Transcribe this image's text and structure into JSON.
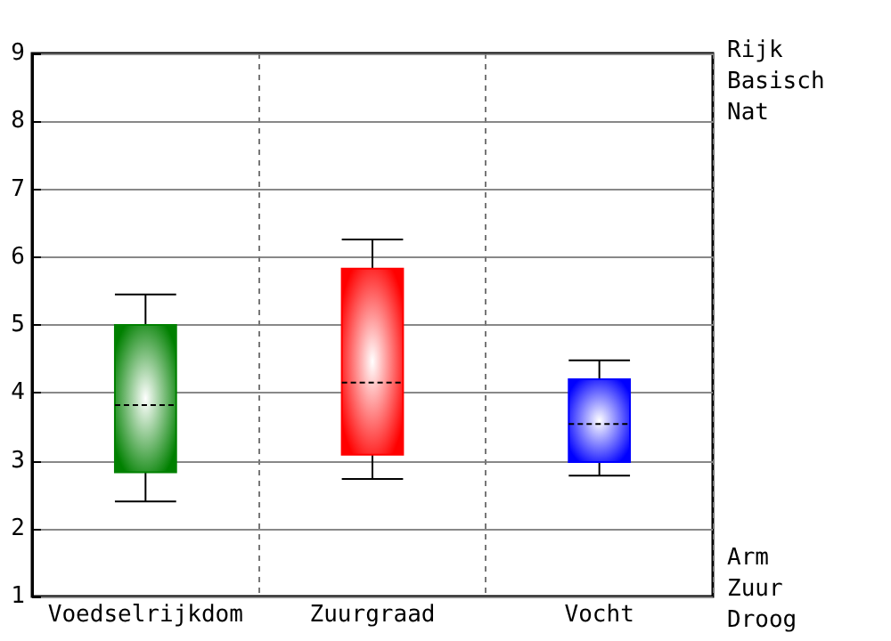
{
  "chart_data": {
    "type": "box",
    "categories": [
      "Voedselrijkdom",
      "Zuurgraad",
      "Vocht"
    ],
    "series": [
      {
        "color": "#008000",
        "boxes": [
          {
            "low": 2.4,
            "q1": 2.83,
            "median": 3.82,
            "q3": 5.0,
            "high": 5.45
          },
          null,
          null
        ]
      },
      {
        "color": "#ff0000",
        "boxes": [
          null,
          {
            "low": 2.73,
            "q1": 3.09,
            "median": 4.15,
            "q3": 5.83,
            "high": 6.26
          },
          null
        ]
      },
      {
        "color": "#0000ff",
        "boxes": [
          null,
          null,
          {
            "low": 2.78,
            "q1": 2.98,
            "median": 3.54,
            "q3": 4.2,
            "high": 4.48
          }
        ]
      }
    ],
    "ylim": [
      1,
      9
    ],
    "yticks": [
      1,
      2,
      3,
      4,
      5,
      6,
      7,
      8,
      9
    ],
    "grid": true,
    "annotations": [
      "Rijk",
      "Basisch",
      "Nat",
      "Arm",
      "Zuur",
      "Droog"
    ]
  }
}
